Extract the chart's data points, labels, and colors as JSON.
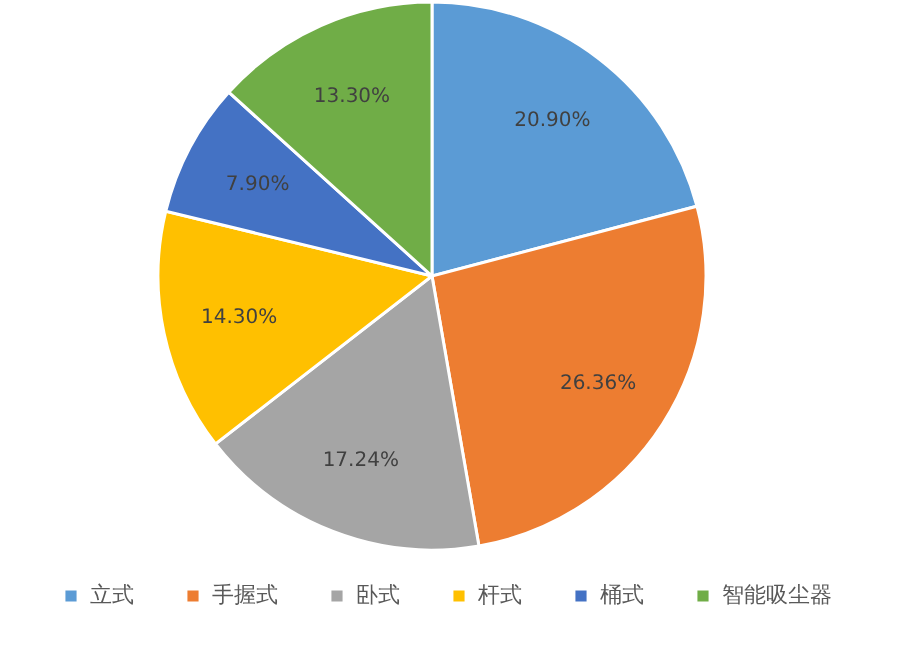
{
  "chart_data": {
    "type": "pie",
    "categories": [
      "立式",
      "手握式",
      "卧式",
      "杆式",
      "桶式",
      "智能吸尘器"
    ],
    "values": [
      20.9,
      26.36,
      17.24,
      14.3,
      7.9,
      13.3
    ],
    "value_labels": [
      "20.90%",
      "26.36%",
      "17.24%",
      "14.30%",
      "7.90%",
      "13.30%"
    ],
    "colors": [
      "#5b9bd5",
      "#ed7d31",
      "#a5a5a5",
      "#ffc000",
      "#4472c4",
      "#70ad47"
    ],
    "legend": "bottom"
  }
}
